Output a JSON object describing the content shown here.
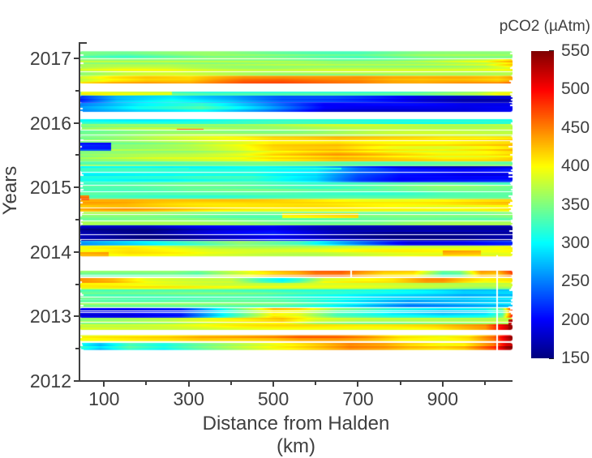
{
  "figure": {
    "background": "#ffffff",
    "text_color": "#3f3f3f",
    "axis_color": "#3f3f3f"
  },
  "chart_data": {
    "type": "heatmap",
    "title": "",
    "xlabel": "Distance from Halden (km)",
    "ylabel": "Years",
    "colorbar_title": "pCO2 (µAtm)",
    "xlim": [
      42,
      1065
    ],
    "ylim": [
      2012,
      2017.25
    ],
    "x_major_ticks": [
      100,
      300,
      500,
      700,
      900
    ],
    "x_minor_ticks": [
      200,
      400,
      600,
      800,
      1000
    ],
    "y_major_ticks": [
      2012,
      2013,
      2014,
      2015,
      2016,
      2017
    ],
    "y_minor_ticks": [
      2012.5,
      2013.5,
      2014.5,
      2015.5,
      2016.5
    ],
    "grid": false,
    "legend_position": "colorbar-right",
    "colorbar": {
      "min": 150,
      "max": 550,
      "ticks": [
        150,
        200,
        250,
        300,
        350,
        400,
        450,
        500,
        550
      ],
      "colormap": "jet",
      "colormap_stops": [
        [
          150,
          "#000080"
        ],
        [
          200,
          "#0000ff"
        ],
        [
          250,
          "#0080ff"
        ],
        [
          300,
          "#00ffff"
        ],
        [
          350,
          "#80ff80"
        ],
        [
          400,
          "#ffff00"
        ],
        [
          450,
          "#ff8000"
        ],
        [
          500,
          "#ff0000"
        ],
        [
          550,
          "#800000"
        ]
      ]
    },
    "bands": [
      {
        "y0": 2017.11,
        "y1": 2016.99,
        "stops": [
          [
            42,
            345
          ],
          [
            150,
            336
          ],
          [
            350,
            350
          ],
          [
            550,
            342
          ],
          [
            700,
            332
          ],
          [
            850,
            345
          ],
          [
            1065,
            350
          ]
        ]
      },
      {
        "y0": 2016.99,
        "y1": 2016.86,
        "stops": [
          [
            42,
            360
          ],
          [
            250,
            372
          ],
          [
            450,
            362
          ],
          [
            650,
            356
          ],
          [
            850,
            368
          ],
          [
            1000,
            380
          ],
          [
            1065,
            415
          ]
        ]
      },
      {
        "y0": 2016.86,
        "y1": 2016.73,
        "stops": [
          [
            42,
            368
          ],
          [
            150,
            382
          ],
          [
            250,
            385
          ],
          [
            500,
            372
          ],
          [
            750,
            368
          ],
          [
            950,
            378
          ],
          [
            1065,
            388
          ]
        ]
      },
      {
        "y0": 2016.73,
        "y1": 2016.61,
        "stops": [
          [
            42,
            392
          ],
          [
            120,
            420
          ],
          [
            200,
            430
          ],
          [
            300,
            420
          ],
          [
            430,
            455
          ],
          [
            520,
            462
          ],
          [
            600,
            458
          ],
          [
            700,
            452
          ],
          [
            780,
            435
          ],
          [
            850,
            428
          ],
          [
            950,
            430
          ],
          [
            1030,
            426
          ],
          [
            1065,
            442
          ]
        ]
      },
      {
        "y0": 2016.49,
        "y1": 2016.42,
        "stops": [
          [
            42,
            350
          ],
          [
            100,
            390
          ],
          [
            200,
            360
          ],
          [
            350,
            330
          ],
          [
            500,
            322
          ],
          [
            700,
            330
          ],
          [
            850,
            340
          ],
          [
            980,
            360
          ],
          [
            1030,
            385
          ],
          [
            1065,
            390
          ]
        ]
      },
      {
        "y0": 2016.42,
        "y1": 2016.31,
        "stops": [
          [
            42,
            210
          ],
          [
            130,
            265
          ],
          [
            260,
            292
          ],
          [
            400,
            268
          ],
          [
            520,
            230
          ],
          [
            640,
            215
          ],
          [
            760,
            195
          ],
          [
            850,
            180
          ],
          [
            950,
            172
          ],
          [
            1065,
            175
          ]
        ]
      },
      {
        "y0": 2016.31,
        "y1": 2016.17,
        "stops": [
          [
            42,
            256
          ],
          [
            180,
            296
          ],
          [
            330,
            312
          ],
          [
            480,
            256
          ],
          [
            620,
            196
          ],
          [
            780,
            188
          ],
          [
            950,
            182
          ],
          [
            1065,
            192
          ]
        ]
      },
      {
        "y0": 2016.06,
        "y1": 2015.98,
        "stops": [
          [
            42,
            312
          ],
          [
            400,
            316
          ],
          [
            700,
            318
          ],
          [
            1065,
            312
          ]
        ]
      },
      {
        "y0": 2015.98,
        "y1": 2015.79,
        "stops": [
          [
            42,
            348
          ],
          [
            250,
            358
          ],
          [
            500,
            360
          ],
          [
            750,
            368
          ],
          [
            950,
            372
          ],
          [
            1065,
            375
          ]
        ]
      },
      {
        "y0": 2015.79,
        "y1": 2015.4,
        "stops": [
          [
            42,
            355
          ],
          [
            150,
            362
          ],
          [
            300,
            375
          ],
          [
            420,
            392
          ],
          [
            500,
            412
          ],
          [
            650,
            425
          ],
          [
            780,
            410
          ],
          [
            900,
            402
          ],
          [
            1000,
            408
          ],
          [
            1065,
            418
          ]
        ]
      },
      {
        "y0": 2015.4,
        "y1": 2015.33,
        "stops": [
          [
            42,
            345
          ],
          [
            300,
            348
          ],
          [
            600,
            342
          ],
          [
            900,
            350
          ],
          [
            1065,
            348
          ]
        ]
      },
      {
        "y0": 2015.33,
        "y1": 2015.08,
        "stops": [
          [
            42,
            310
          ],
          [
            250,
            305
          ],
          [
            450,
            315
          ],
          [
            600,
            290
          ],
          [
            700,
            230
          ],
          [
            800,
            200
          ],
          [
            950,
            195
          ],
          [
            1065,
            202
          ]
        ]
      },
      {
        "y0": 2015.08,
        "y1": 2014.82,
        "stops": [
          [
            42,
            332
          ],
          [
            300,
            338
          ],
          [
            600,
            330
          ],
          [
            900,
            342
          ],
          [
            1065,
            336
          ]
        ]
      },
      {
        "y0": 2014.82,
        "y1": 2014.62,
        "stops": [
          [
            42,
            420
          ],
          [
            150,
            425
          ],
          [
            300,
            415
          ],
          [
            500,
            405
          ],
          [
            700,
            398
          ],
          [
            900,
            400
          ],
          [
            1065,
            405
          ]
        ]
      },
      {
        "y0": 2014.62,
        "y1": 2014.41,
        "stops": [
          [
            42,
            362
          ],
          [
            250,
            356
          ],
          [
            500,
            350
          ],
          [
            750,
            347
          ],
          [
            1000,
            356
          ],
          [
            1065,
            360
          ]
        ]
      },
      {
        "y0": 2014.41,
        "y1": 2014.17,
        "stops": [
          [
            42,
            172
          ],
          [
            200,
            160
          ],
          [
            360,
            186
          ],
          [
            500,
            202
          ],
          [
            640,
            178
          ],
          [
            800,
            164
          ],
          [
            950,
            160
          ],
          [
            1065,
            166
          ]
        ]
      },
      {
        "y0": 2014.17,
        "y1": 2014.1,
        "stops": [
          [
            42,
            255
          ],
          [
            250,
            320
          ],
          [
            420,
            360
          ],
          [
            560,
            330
          ],
          [
            700,
            260
          ],
          [
            820,
            200
          ],
          [
            950,
            195
          ],
          [
            1065,
            210
          ]
        ]
      },
      {
        "y0": 2014.1,
        "y1": 2013.93,
        "stops": [
          [
            42,
            390
          ],
          [
            160,
            400
          ],
          [
            350,
            380
          ],
          [
            600,
            376
          ],
          [
            850,
            388
          ],
          [
            1000,
            392
          ],
          [
            1065,
            398
          ]
        ]
      },
      {
        "y0": 2013.71,
        "y1": 2013.62,
        "stops": [
          [
            42,
            348
          ],
          [
            260,
            342
          ],
          [
            320,
            330
          ],
          [
            420,
            380
          ],
          [
            500,
            420
          ],
          [
            560,
            440
          ],
          [
            600,
            462
          ],
          [
            660,
            462
          ],
          [
            700,
            440
          ],
          [
            760,
            410
          ],
          [
            830,
            400
          ],
          [
            900,
            320
          ],
          [
            940,
            330
          ],
          [
            990,
            425
          ],
          [
            1030,
            420
          ],
          [
            1065,
            472
          ]
        ]
      },
      {
        "y0": 2013.6,
        "y1": 2013.52,
        "stops": [
          [
            42,
            448
          ],
          [
            120,
            440
          ],
          [
            200,
            408
          ],
          [
            300,
            395
          ],
          [
            400,
            385
          ],
          [
            470,
            330
          ],
          [
            520,
            305
          ],
          [
            560,
            330
          ],
          [
            620,
            395
          ],
          [
            700,
            410
          ],
          [
            780,
            420
          ],
          [
            860,
            450
          ],
          [
            900,
            448
          ],
          [
            950,
            420
          ],
          [
            1000,
            400
          ],
          [
            1065,
            408
          ]
        ]
      },
      {
        "y0": 2013.52,
        "y1": 2013.42,
        "stops": [
          [
            42,
            400
          ],
          [
            200,
            395
          ],
          [
            400,
            388
          ],
          [
            600,
            380
          ],
          [
            800,
            372
          ],
          [
            1000,
            368
          ],
          [
            1065,
            375
          ]
        ]
      },
      {
        "y0": 2013.42,
        "y1": 2013.26,
        "stops": [
          [
            42,
            348
          ],
          [
            250,
            340
          ],
          [
            480,
            336
          ],
          [
            650,
            322
          ],
          [
            800,
            298
          ],
          [
            950,
            278
          ],
          [
            1065,
            290
          ]
        ]
      },
      {
        "y0": 2013.26,
        "y1": 2013.13,
        "stops": [
          [
            42,
            344
          ],
          [
            280,
            350
          ],
          [
            520,
            332
          ],
          [
            680,
            295
          ],
          [
            820,
            262
          ],
          [
            960,
            272
          ],
          [
            1065,
            282
          ]
        ]
      },
      {
        "y0": 2013.13,
        "y1": 2012.98,
        "stops": [
          [
            42,
            198
          ],
          [
            150,
            194
          ],
          [
            280,
            215
          ],
          [
            400,
            330
          ],
          [
            500,
            420
          ],
          [
            560,
            405
          ],
          [
            650,
            340
          ],
          [
            780,
            305
          ],
          [
            900,
            292
          ],
          [
            1000,
            308
          ],
          [
            1040,
            345
          ],
          [
            1065,
            510
          ]
        ]
      },
      {
        "y0": 2012.98,
        "y1": 2012.88,
        "stops": [
          [
            42,
            360
          ],
          [
            250,
            362
          ],
          [
            450,
            400
          ],
          [
            520,
            415
          ],
          [
            600,
            380
          ],
          [
            700,
            365
          ],
          [
            800,
            358
          ],
          [
            950,
            362
          ],
          [
            1065,
            378
          ]
        ]
      },
      {
        "y0": 2012.88,
        "y1": 2012.79,
        "stops": [
          [
            42,
            372
          ],
          [
            300,
            382
          ],
          [
            500,
            392
          ],
          [
            700,
            400
          ],
          [
            880,
            410
          ],
          [
            1000,
            435
          ],
          [
            1050,
            510
          ],
          [
            1065,
            538
          ]
        ]
      },
      {
        "y0": 2012.71,
        "y1": 2012.62,
        "stops": [
          [
            42,
            392
          ],
          [
            150,
            398
          ],
          [
            250,
            408
          ],
          [
            330,
            425
          ],
          [
            420,
            430
          ],
          [
            500,
            435
          ],
          [
            560,
            448
          ],
          [
            650,
            445
          ],
          [
            720,
            430
          ],
          [
            800,
            405
          ],
          [
            900,
            400
          ],
          [
            960,
            415
          ],
          [
            1020,
            460
          ],
          [
            1050,
            520
          ],
          [
            1065,
            545
          ]
        ]
      },
      {
        "y0": 2012.59,
        "y1": 2012.48,
        "stops": [
          [
            42,
            318
          ],
          [
            90,
            285
          ],
          [
            160,
            332
          ],
          [
            240,
            305
          ],
          [
            330,
            338
          ],
          [
            420,
            370
          ],
          [
            500,
            400
          ],
          [
            600,
            430
          ],
          [
            680,
            455
          ],
          [
            760,
            440
          ],
          [
            820,
            420
          ],
          [
            900,
            405
          ],
          [
            950,
            415
          ],
          [
            1020,
            470
          ],
          [
            1050,
            530
          ],
          [
            1065,
            542
          ]
        ]
      }
    ],
    "patches": [
      {
        "y0": 2015.7,
        "y1": 2015.58,
        "d0": 42,
        "d1": 115,
        "v": 215
      },
      {
        "y0": 2015.92,
        "y1": 2015.88,
        "d0": 270,
        "d1": 335,
        "v": 452
      },
      {
        "y0": 2016.49,
        "y1": 2016.44,
        "d0": 44,
        "d1": 260,
        "v": 400
      },
      {
        "y0": 2014.88,
        "y1": 2014.82,
        "d0": 42,
        "d1": 64,
        "v": 455
      },
      {
        "y0": 2014.6,
        "y1": 2014.53,
        "d0": 520,
        "d1": 700,
        "v": 415
      },
      {
        "y0": 2015.31,
        "y1": 2015.28,
        "d0": 300,
        "d1": 660,
        "v": 298
      },
      {
        "y0": 2014.04,
        "y1": 2013.96,
        "d0": 900,
        "d1": 990,
        "v": 428
      },
      {
        "y0": 2014.02,
        "y1": 2013.93,
        "d0": 42,
        "d1": 110,
        "v": 430
      },
      {
        "y0": 2012.97,
        "y1": 2012.78,
        "d0": 1055,
        "d1": 1065,
        "v": 530
      }
    ],
    "vgaps": [
      {
        "d": 684,
        "y0": 2013.75,
        "y1": 2013.6
      },
      {
        "d": 1028,
        "y0": 2013.95,
        "y1": 2012.45
      }
    ]
  }
}
